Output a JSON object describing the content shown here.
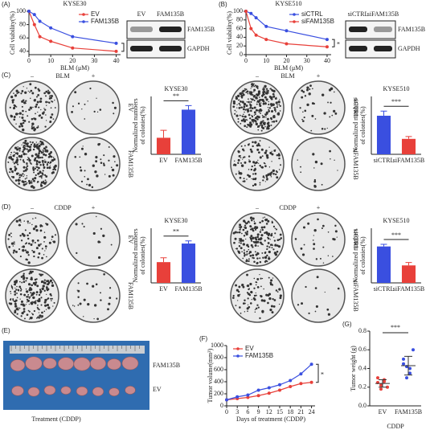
{
  "chart_data": [
    {
      "type": "line",
      "panel": "(A)",
      "title": "KYSE30",
      "xlabel": "BLM (μM)",
      "ylabel": "Cell viability(%)",
      "x": [
        0,
        2.5,
        5,
        10,
        20,
        40
      ],
      "xlim": [
        0,
        42
      ],
      "xticks": [
        0,
        10,
        20,
        30,
        40
      ],
      "ylim": [
        35,
        100
      ],
      "yticks": [
        40,
        60,
        80,
        100
      ],
      "legend": "upper right",
      "annotation": "*",
      "series": [
        {
          "name": "EV",
          "color": "#e8403a",
          "values": [
            100,
            80,
            62,
            55,
            45,
            40
          ]
        },
        {
          "name": "FAM135B",
          "color": "#3a4fe0",
          "values": [
            100,
            95,
            85,
            75,
            62,
            52
          ]
        }
      ]
    },
    {
      "type": "line",
      "panel": "(B)",
      "title": "KYSE510",
      "xlabel": "BLM (μM)",
      "ylabel": "Cell viability(%)",
      "x": [
        0,
        2.5,
        5,
        10,
        20,
        40
      ],
      "xlim": [
        0,
        42
      ],
      "xticks": [
        0,
        10,
        20,
        30,
        40
      ],
      "ylim": [
        0,
        100
      ],
      "yticks": [
        0,
        20,
        40,
        60,
        80,
        100
      ],
      "legend": "upper right",
      "annotation": "*",
      "series": [
        {
          "name": "siCTRL",
          "color": "#3a4fe0",
          "values": [
            100,
            95,
            85,
            65,
            55,
            35
          ]
        },
        {
          "name": "siFAM135B",
          "color": "#e8403a",
          "values": [
            100,
            60,
            45,
            35,
            25,
            18
          ]
        }
      ]
    },
    {
      "type": "bar",
      "title": "KYSE30",
      "ylabel": [
        "Normalized numbers",
        "of colonies(%)"
      ],
      "categories": [
        "EV",
        "FAM135B"
      ],
      "values": [
        100,
        270
      ],
      "errors": [
        45,
        25
      ],
      "colors": [
        "#e8403a",
        "#3a4fe0"
      ],
      "ylim": [
        0,
        350
      ],
      "annotation": "**"
    },
    {
      "type": "bar",
      "title": "KYSE510",
      "ylabel": [
        "Normalized numbers",
        "of colonies(%)"
      ],
      "categories": [
        "siCTRL",
        "siFAM135B"
      ],
      "values": [
        100,
        40
      ],
      "errors": [
        12,
        6
      ],
      "colors": [
        "#3a4fe0",
        "#e8403a"
      ],
      "ylim": [
        0,
        150
      ],
      "annotation": "***"
    },
    {
      "type": "bar",
      "title": "KYSE30",
      "ylabel": [
        "Normalized numbers",
        "of colonies(%)"
      ],
      "categories": [
        "EV",
        "FAM135B"
      ],
      "values": [
        95,
        180
      ],
      "errors": [
        20,
        12
      ],
      "colors": [
        "#e8403a",
        "#3a4fe0"
      ],
      "ylim": [
        0,
        250
      ],
      "annotation": "**"
    },
    {
      "type": "bar",
      "title": "KYSE510",
      "ylabel": [
        "Normalized numbers",
        "of colonies(%)"
      ],
      "categories": [
        "siCTRL",
        "siFAM135B"
      ],
      "values": [
        100,
        48
      ],
      "errors": [
        6,
        8
      ],
      "colors": [
        "#3a4fe0",
        "#e8403a"
      ],
      "ylim": [
        0,
        150
      ],
      "annotation": "***"
    },
    {
      "type": "line",
      "panel": "(F)",
      "xlabel": "Days of treatment (CDDP)",
      "ylabel": "Tumor volume(mm³)",
      "x": [
        0,
        3,
        6,
        9,
        12,
        15,
        18,
        21,
        24
      ],
      "xlim": [
        0,
        25
      ],
      "xticks": [
        0,
        3,
        6,
        9,
        12,
        15,
        18,
        21,
        24
      ],
      "ylim": [
        0,
        1000
      ],
      "yticks": [
        0,
        200,
        400,
        600,
        800,
        1000
      ],
      "legend": "upper left",
      "annotation": "*",
      "series": [
        {
          "name": "EV",
          "color": "#e8403a",
          "values": [
            100,
            120,
            140,
            170,
            210,
            260,
            320,
            370,
            390
          ]
        },
        {
          "name": "FAM135B",
          "color": "#3a4fe0",
          "values": [
            100,
            150,
            180,
            260,
            300,
            350,
            420,
            530,
            690
          ]
        }
      ]
    },
    {
      "type": "dot",
      "panel": "(G)",
      "xlabel": "CDDP",
      "ylabel": "Tumor weight (g)",
      "categories": [
        "EV",
        "FAM135B"
      ],
      "colors": [
        "#e8403a",
        "#3a4fe0"
      ],
      "points": [
        [
          0.25,
          0.22,
          0.28,
          0.2,
          0.3,
          0.18,
          0.26
        ],
        [
          0.5,
          0.42,
          0.35,
          0.6,
          0.45,
          0.3,
          0.4
        ]
      ],
      "means": [
        0.24,
        0.43
      ],
      "sd": [
        0.04,
        0.1
      ],
      "ylim": [
        0,
        0.8
      ],
      "yticks": [
        {
          "value": 0,
          "label": "0.0"
        },
        {
          "value": 0.2,
          "label": "0.2"
        },
        {
          "value": 0.4,
          "label": "0.4"
        },
        {
          "value": 0.6,
          "label": "0.6"
        },
        {
          "value": 0.8,
          "label": "0.8"
        }
      ],
      "annotation": "***"
    }
  ],
  "blots": [
    {
      "columns": [
        "EV",
        "FAM135B"
      ],
      "rows": [
        "FAM135B",
        "GAPDH"
      ]
    },
    {
      "columns": [
        "siCTRL",
        "siFAM135B"
      ],
      "rows": [
        "FAM135B",
        "GAPDH"
      ]
    }
  ],
  "plates": [
    {
      "panel": "(C)",
      "treatment": "BLM",
      "conditions": [
        "–",
        "+"
      ],
      "rows": [
        "EV",
        "FAM135B"
      ]
    },
    {
      "treatment": "BLM",
      "conditions": [
        "–",
        "+"
      ],
      "rows": [
        "siCTRL",
        "siFAM135B"
      ]
    },
    {
      "panel": "(D)",
      "treatment": "CDDP",
      "conditions": [
        "–",
        "+"
      ],
      "rows": [
        "EV",
        "FAM135B"
      ]
    },
    {
      "treatment": "CDDP",
      "conditions": [
        "–",
        "+"
      ],
      "rows": [
        "siCTRL",
        "siFAM135B"
      ]
    }
  ],
  "photo": {
    "panel": "(E)",
    "rows": [
      "FAM135B",
      "EV"
    ],
    "caption": "Treatment (CDDP)"
  }
}
